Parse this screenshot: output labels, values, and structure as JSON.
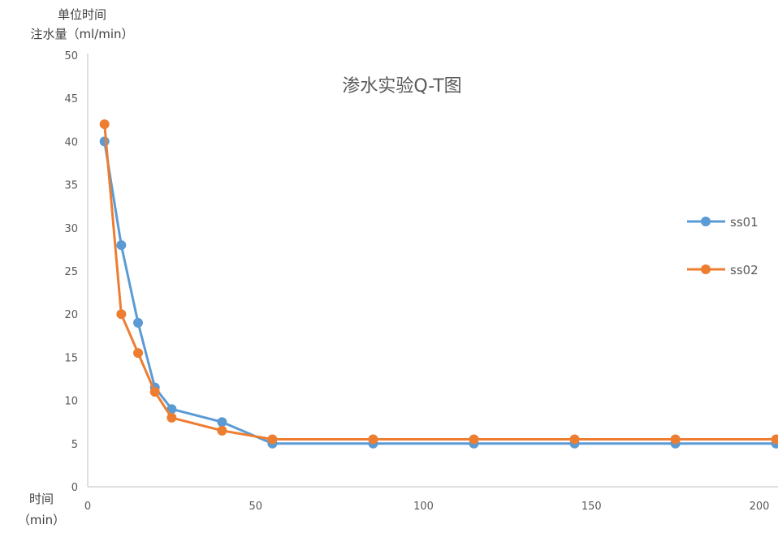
{
  "chart_data": {
    "type": "line",
    "title": "渗水实验Q-T图",
    "ylabel": [
      "单位时间",
      "注水量（ml/min）"
    ],
    "xlabel": [
      "时间",
      "（min）"
    ],
    "xlim": [
      0,
      200
    ],
    "ylim": [
      0,
      50
    ],
    "x_ticks": [
      0,
      50,
      100,
      150,
      200
    ],
    "y_ticks": [
      0,
      5,
      10,
      15,
      20,
      25,
      30,
      35,
      40,
      45,
      50
    ],
    "grid": false,
    "legend_position": "right",
    "series": [
      {
        "name": "ss01",
        "color": "#5B9BD5",
        "x": [
          5,
          10,
          15,
          20,
          25,
          40,
          55,
          85,
          115,
          145,
          175,
          205
        ],
        "values": [
          40,
          28,
          19,
          11.5,
          9,
          7.5,
          5,
          5,
          5,
          5,
          5,
          5
        ]
      },
      {
        "name": "ss02",
        "color": "#ED7D31",
        "x": [
          5,
          10,
          15,
          20,
          25,
          40,
          55,
          85,
          115,
          145,
          175,
          205
        ],
        "values": [
          42,
          20,
          15.5,
          11,
          8,
          6.5,
          5.5,
          5.5,
          5.5,
          5.5,
          5.5,
          5.5
        ]
      }
    ]
  }
}
